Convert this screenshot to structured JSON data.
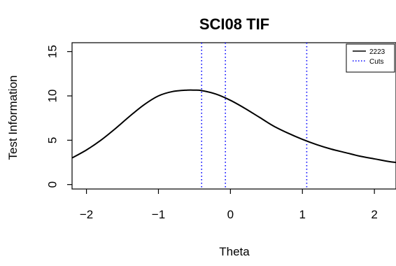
{
  "chart_data": {
    "type": "line",
    "title": "SCI08 TIF",
    "xlabel": "Theta",
    "ylabel": "Test Information",
    "xlim": [
      -2.2,
      2.3
    ],
    "ylim": [
      -0.5,
      16
    ],
    "x_ticks": [
      -2,
      -1,
      0,
      1,
      2
    ],
    "x_tick_labels": [
      "−2",
      "−1",
      "0",
      "1",
      "2"
    ],
    "y_ticks": [
      0,
      5,
      10,
      15
    ],
    "y_tick_labels": [
      "0",
      "5",
      "10",
      "15"
    ],
    "grid": false,
    "legend_position": "top-right",
    "series": [
      {
        "name": "2223",
        "color": "#000000",
        "style": "solid",
        "x": [
          -2.2,
          -2.0,
          -1.8,
          -1.6,
          -1.4,
          -1.2,
          -1.0,
          -0.8,
          -0.6,
          -0.5,
          -0.4,
          -0.2,
          0.0,
          0.2,
          0.4,
          0.6,
          0.8,
          1.0,
          1.2,
          1.4,
          1.6,
          1.8,
          2.0,
          2.2,
          2.3
        ],
        "y": [
          3.0,
          3.9,
          5.0,
          6.3,
          7.7,
          9.0,
          10.0,
          10.5,
          10.65,
          10.65,
          10.6,
          10.2,
          9.5,
          8.6,
          7.6,
          6.6,
          5.8,
          5.1,
          4.5,
          4.0,
          3.6,
          3.2,
          2.9,
          2.6,
          2.5
        ]
      }
    ],
    "cuts": {
      "name": "Cuts",
      "color": "#0000ff",
      "style": "dotted",
      "x": [
        -0.4,
        -0.07,
        1.06
      ]
    }
  }
}
